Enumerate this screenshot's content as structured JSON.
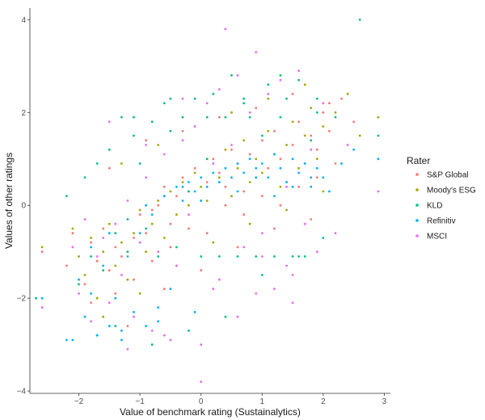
{
  "chart_data": {
    "type": "scatter",
    "title": "",
    "xlabel": "Value of benchmark rating (Sustainalytics)",
    "ylabel": "Values of other ratings",
    "xlim": [
      -2.8,
      3.1
    ],
    "ylim": [
      -4.05,
      4.25
    ],
    "x_ticks": [
      -2,
      -1,
      0,
      1,
      2,
      3
    ],
    "y_ticks": [
      -4,
      -2,
      0,
      2,
      4
    ],
    "grid": false,
    "legend": {
      "title": "Rater",
      "placement": "right"
    },
    "series": [
      {
        "name": "S&P Global",
        "color": "#F8766D",
        "x": [
          -2.6,
          -2.2,
          -2.1,
          -1.9,
          -1.8,
          -1.7,
          -1.6,
          -1.5,
          -1.4,
          -1.3,
          -1.2,
          -1.1,
          -1.0,
          -0.9,
          -0.8,
          -0.7,
          -0.6,
          -0.5,
          -0.4,
          -0.3,
          -0.2,
          -0.1,
          0.0,
          0.1,
          0.2,
          0.3,
          0.4,
          0.5,
          0.6,
          0.7,
          0.8,
          0.9,
          1.0,
          1.1,
          1.2,
          1.3,
          1.4,
          1.5,
          1.6,
          1.7,
          1.8,
          1.9,
          2.0,
          2.1,
          2.3,
          2.5,
          -1.8,
          -1.4,
          -1.1,
          -0.8,
          -0.5,
          -0.2,
          0.1,
          0.4,
          0.7,
          1.0,
          1.3,
          1.6,
          1.9,
          2.2,
          -1.5,
          -0.9,
          -0.3,
          0.3,
          0.9,
          1.5,
          2.1,
          -1.2,
          -0.6,
          0.0,
          0.6,
          1.2,
          1.8
        ],
        "y": [
          -1.0,
          -1.3,
          -0.6,
          -1.7,
          -0.8,
          -1.2,
          -0.5,
          -1.4,
          -0.9,
          -1.1,
          -0.3,
          -0.7,
          -0.2,
          -0.6,
          -0.1,
          0.0,
          0.4,
          -0.4,
          0.2,
          0.6,
          0.3,
          0.8,
          0.1,
          0.5,
          1.0,
          0.7,
          0.4,
          1.2,
          0.9,
          0.3,
          1.1,
          0.6,
          1.4,
          0.8,
          1.6,
          1.0,
          0.5,
          1.3,
          1.8,
          0.9,
          1.5,
          1.2,
          2.0,
          1.6,
          2.3,
          1.8,
          -2.1,
          -1.9,
          -1.6,
          -1.2,
          -0.9,
          -0.5,
          -0.6,
          0.0,
          -0.2,
          0.2,
          0.0,
          0.4,
          0.6,
          0.9,
          0.8,
          1.4,
          1.6,
          1.9,
          2.1,
          2.4,
          2.2,
          -2.6,
          -1.8,
          -1.4,
          -0.9,
          -0.5,
          -0.3
        ]
      },
      {
        "name": "Moody's ESG",
        "color": "#A3A500",
        "x": [
          -2.6,
          -2.1,
          -2.0,
          -1.9,
          -1.8,
          -1.7,
          -1.6,
          -1.5,
          -1.4,
          -1.3,
          -1.2,
          -1.1,
          -1.0,
          -0.9,
          -0.8,
          -0.7,
          -0.6,
          -0.5,
          -0.4,
          -0.3,
          -0.2,
          -0.1,
          0.0,
          0.1,
          0.2,
          0.3,
          0.4,
          0.5,
          0.6,
          0.7,
          0.8,
          0.9,
          1.0,
          1.1,
          1.2,
          1.3,
          1.4,
          1.5,
          1.6,
          1.7,
          1.8,
          1.9,
          2.0,
          2.2,
          2.4,
          2.6,
          2.9,
          -1.6,
          -1.0,
          -0.4,
          0.2,
          0.8,
          1.4,
          2.0,
          -1.3,
          -0.7,
          -0.1,
          0.5,
          1.1,
          1.7
        ],
        "y": [
          -0.9,
          -0.5,
          -1.1,
          -1.5,
          -0.7,
          -2.0,
          -1.0,
          -0.4,
          -1.3,
          -0.8,
          -1.6,
          -0.6,
          -0.1,
          -1.0,
          -0.4,
          0.1,
          -0.7,
          0.3,
          -0.2,
          0.5,
          0.0,
          0.7,
          0.4,
          0.1,
          0.9,
          0.6,
          1.2,
          0.2,
          0.8,
          1.4,
          0.5,
          1.0,
          0.7,
          1.6,
          1.1,
          0.4,
          1.3,
          1.8,
          0.8,
          1.5,
          2.1,
          1.0,
          1.7,
          2.0,
          2.4,
          1.5,
          1.9,
          -2.4,
          -1.9,
          -1.3,
          -0.8,
          -0.4,
          -0.1,
          0.3,
          0.9,
          1.3,
          1.7,
          2.0,
          2.3,
          2.6
        ]
      },
      {
        "name": "KLD",
        "color": "#00BF7D",
        "x": [
          -2.7,
          -2.2,
          -2.0,
          -1.9,
          -1.8,
          -1.7,
          -1.6,
          -1.5,
          -1.4,
          -1.3,
          -1.2,
          -1.1,
          -1.0,
          -0.9,
          -0.8,
          -0.7,
          -0.6,
          -0.5,
          -0.4,
          -0.3,
          -0.2,
          -0.1,
          0.0,
          0.1,
          0.2,
          0.3,
          0.4,
          0.5,
          0.6,
          0.7,
          0.8,
          0.9,
          1.0,
          1.1,
          1.2,
          1.3,
          1.4,
          1.5,
          1.6,
          1.7,
          1.8,
          1.9,
          2.0,
          2.2,
          2.6,
          2.9,
          -1.4,
          -0.8,
          -0.2,
          0.4,
          1.0,
          1.6,
          -1.1,
          -0.5,
          0.1,
          0.7,
          1.3,
          1.9
        ],
        "y": [
          -2.0,
          0.2,
          -1.7,
          0.6,
          -1.1,
          0.9,
          -1.4,
          1.2,
          -0.6,
          1.9,
          -1.0,
          1.5,
          0.9,
          -0.5,
          1.8,
          -1.1,
          2.2,
          1.6,
          -0.9,
          1.9,
          0.3,
          2.3,
          -1.1,
          1.0,
          2.4,
          -1.1,
          1.9,
          2.8,
          -1.1,
          2.2,
          1.9,
          -1.1,
          1.5,
          2.6,
          -1.1,
          1.9,
          2.3,
          -1.1,
          2.7,
          -1.1,
          1.4,
          2.0,
          -0.7,
          1.9,
          4.0,
          1.5,
          -2.6,
          -3.0,
          -2.7,
          -2.4,
          -1.5,
          -1.1,
          1.9,
          2.3,
          1.9,
          2.3,
          2.8,
          2.3
        ]
      },
      {
        "name": "Refinitiv",
        "color": "#00B0F6",
        "x": [
          -2.6,
          -2.2,
          -2.0,
          -1.9,
          -1.8,
          -1.7,
          -1.6,
          -1.5,
          -1.4,
          -1.3,
          -1.2,
          -1.1,
          -1.0,
          -0.9,
          -0.8,
          -0.7,
          -0.6,
          -0.5,
          -0.4,
          -0.3,
          -0.2,
          -0.1,
          0.0,
          0.1,
          0.2,
          0.3,
          0.4,
          0.5,
          0.6,
          0.7,
          0.8,
          0.9,
          1.0,
          1.1,
          1.2,
          1.3,
          1.4,
          1.5,
          1.6,
          1.7,
          1.8,
          1.9,
          2.0,
          2.1,
          2.3,
          2.5,
          2.9,
          -1.8,
          -1.5,
          -1.2,
          -0.9,
          -0.6,
          -0.3,
          0.0,
          0.3,
          0.6,
          0.9,
          1.2,
          1.5,
          1.8,
          -2.1,
          -1.7,
          -1.3,
          -0.7,
          -0.1
        ],
        "y": [
          -2.0,
          -2.9,
          -1.6,
          -2.4,
          -1.9,
          -2.8,
          -1.3,
          -2.6,
          -2.0,
          -2.9,
          -1.1,
          -2.3,
          -0.6,
          -2.6,
          -0.2,
          -2.2,
          0.2,
          -1.8,
          0.4,
          0.1,
          0.5,
          0.3,
          0.6,
          0.4,
          0.7,
          0.5,
          0.8,
          0.6,
          0.9,
          0.7,
          1.0,
          0.8,
          0.9,
          0.6,
          1.1,
          0.8,
          0.5,
          1.0,
          0.7,
          0.9,
          0.4,
          0.8,
          0.6,
          0.3,
          0.9,
          1.2,
          1.0,
          -0.9,
          -0.6,
          -0.3,
          0.0,
          0.2,
          0.4,
          0.1,
          0.5,
          0.3,
          0.6,
          0.2,
          0.4,
          0.6,
          -2.9,
          -2.8,
          -2.7,
          -2.5,
          -2.3
        ]
      },
      {
        "name": "MSCI",
        "color": "#E76BF3",
        "x": [
          -2.6,
          -2.1,
          -2.0,
          -1.9,
          -1.8,
          -1.7,
          -1.6,
          -1.5,
          -1.4,
          -1.3,
          -1.2,
          -1.1,
          -1.0,
          -0.9,
          -0.8,
          -0.7,
          -0.6,
          -0.5,
          -0.4,
          -0.3,
          -0.2,
          -0.1,
          0.0,
          0.1,
          0.2,
          0.3,
          0.4,
          0.5,
          0.6,
          0.7,
          0.8,
          0.9,
          1.0,
          1.1,
          1.2,
          1.3,
          1.4,
          1.5,
          1.6,
          1.7,
          1.8,
          1.9,
          2.0,
          2.2,
          2.4,
          2.9,
          -1.5,
          -0.9,
          -0.3,
          0.3,
          0.9,
          1.5,
          0.0,
          0.2,
          0.6,
          -0.5,
          1.0,
          1.4,
          -1.2,
          -0.6
        ],
        "y": [
          -2.2,
          -0.9,
          -1.9,
          -0.3,
          -2.5,
          -1.1,
          -0.7,
          -2.1,
          -0.4,
          -1.5,
          0.1,
          -2.4,
          -0.8,
          0.6,
          -2.7,
          -1.0,
          1.1,
          -2.9,
          -1.3,
          1.4,
          -0.2,
          1.7,
          -3.8,
          2.2,
          0.9,
          2.5,
          3.8,
          1.3,
          2.8,
          -0.9,
          2.0,
          3.3,
          -0.6,
          2.4,
          -1.8,
          2.7,
          0.4,
          -2.1,
          2.9,
          -0.4,
          1.2,
          -1.0,
          2.2,
          -0.6,
          1.3,
          0.3,
          1.8,
          1.3,
          2.3,
          -1.6,
          -1.9,
          -1.5,
          -3.0,
          -1.8,
          -2.4,
          -2.9,
          -1.1,
          -1.3,
          -3.1,
          -2.8
        ]
      }
    ]
  }
}
